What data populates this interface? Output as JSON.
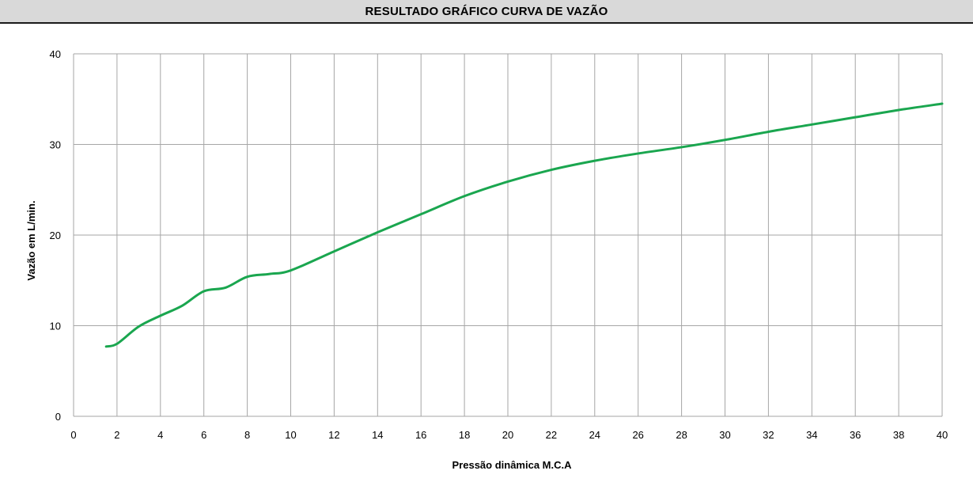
{
  "chart_data": {
    "type": "line",
    "title": "RESULTADO GRÁFICO CURVA DE VAZÃO",
    "xlabel": "Pressão dinâmica M.C.A",
    "ylabel": "Vazão em L/min.",
    "xlim": [
      0,
      40
    ],
    "ylim": [
      0,
      40
    ],
    "x_ticks": [
      "0",
      "2",
      "4",
      "6",
      "8",
      "10",
      "12",
      "14",
      "16",
      "18",
      "20",
      "22",
      "24",
      "26",
      "28",
      "30",
      "32",
      "34",
      "36",
      "38",
      "40"
    ],
    "y_ticks": [
      "0",
      "10",
      "20",
      "30",
      "40"
    ],
    "grid": true,
    "legend": "none",
    "line_color": "#1aa64f",
    "grid_color": "#a6a6a6",
    "series": [
      {
        "x": [
          1.5,
          2,
          3,
          4,
          5,
          6,
          7,
          8,
          9,
          10,
          12,
          14,
          16,
          18,
          20,
          22,
          24,
          26,
          28,
          30,
          32,
          34,
          36,
          38,
          40
        ],
        "y": [
          7.7,
          8.0,
          9.9,
          11.1,
          12.2,
          13.8,
          14.2,
          15.4,
          15.7,
          16.1,
          18.2,
          20.3,
          22.3,
          24.3,
          25.9,
          27.2,
          28.2,
          29.0,
          29.7,
          30.5,
          31.4,
          32.2,
          33.0,
          33.8,
          34.5
        ]
      }
    ]
  }
}
